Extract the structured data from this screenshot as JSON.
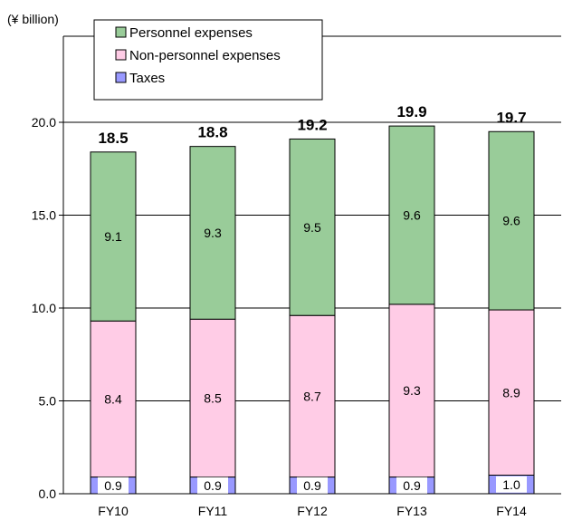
{
  "chart_data": {
    "type": "bar",
    "stacked": true,
    "ylabel": "(¥ billion)",
    "ylim": [
      0,
      21.0
    ],
    "yticks": [
      "0.0",
      "5.0",
      "10.0",
      "15.0",
      "20.0"
    ],
    "ytick_values": [
      0,
      5,
      10,
      15,
      20
    ],
    "grid": true,
    "legend_position": "top-left",
    "categories": [
      "FY10",
      "FY11",
      "FY12",
      "FY13",
      "FY14"
    ],
    "series": [
      {
        "name": "Taxes",
        "values": [
          0.9,
          0.9,
          0.9,
          0.9,
          1.0
        ],
        "labels": [
          "0.9",
          "0.9",
          "0.9",
          "0.9",
          "1.0"
        ],
        "color": "#9999ff",
        "label_bg": true
      },
      {
        "name": "Non-personnel expenses",
        "values": [
          8.4,
          8.5,
          8.7,
          9.3,
          8.9
        ],
        "labels": [
          "8.4",
          "8.5",
          "8.7",
          "9.3",
          "8.9"
        ],
        "color": "#ffcce6",
        "label_bg": false
      },
      {
        "name": "Personnel expenses",
        "values": [
          9.1,
          9.3,
          9.5,
          9.6,
          9.6
        ],
        "labels": [
          "9.1",
          "9.3",
          "9.5",
          "9.6",
          "9.6"
        ],
        "color": "#99cc99",
        "label_bg": false
      }
    ],
    "totals": [
      "18.5",
      "18.8",
      "19.2",
      "19.9",
      "19.7"
    ],
    "legend_order": [
      "Personnel expenses",
      "Non-personnel expenses",
      "Taxes"
    ]
  }
}
